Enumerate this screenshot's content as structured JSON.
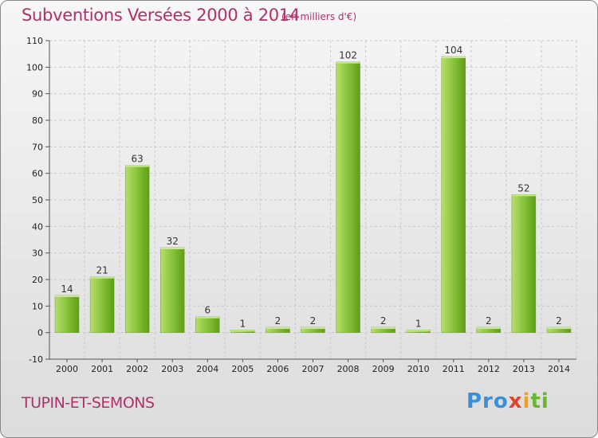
{
  "header": {
    "title": "Subventions Versées 2000 à 2014",
    "subtitle": "(en milliers d'€)"
  },
  "footer": {
    "commune": "TUPIN-ET-SEMONS",
    "logo_parts": [
      "Pro",
      "x",
      "i",
      "ti"
    ]
  },
  "colors": {
    "title": "#b0306a",
    "bar_light": "#a6d45a",
    "bar_dark": "#5e9e16",
    "grid": "#c8c8c8"
  },
  "chart_data": {
    "type": "bar",
    "title": "Subventions Versées 2000 à 2014",
    "xlabel": "",
    "ylabel": "",
    "categories": [
      "2000",
      "2001",
      "2002",
      "2003",
      "2004",
      "2005",
      "2006",
      "2007",
      "2008",
      "2009",
      "2010",
      "2011",
      "2012",
      "2013",
      "2014"
    ],
    "values": [
      14,
      21,
      63,
      32,
      6,
      1,
      2,
      2,
      102,
      2,
      1,
      104,
      2,
      52,
      2
    ],
    "ylim": [
      -10,
      110
    ],
    "yticks": [
      -10,
      0,
      10,
      20,
      30,
      40,
      50,
      60,
      70,
      80,
      90,
      100,
      110
    ],
    "grid": true,
    "data_labels": true
  }
}
